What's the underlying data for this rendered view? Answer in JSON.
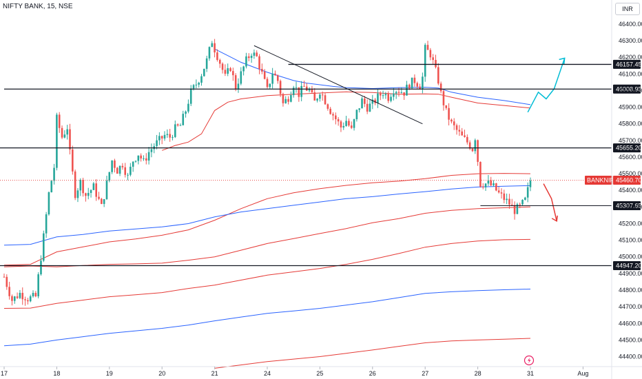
{
  "header": {
    "symbol": "NIFTY BANK, 15, NSE",
    "currency": "INR"
  },
  "colors": {
    "up": "#26a69a",
    "down": "#ef5350",
    "blue": "#2962ff",
    "red": "#e53935",
    "cyan": "#00bcd4"
  },
  "chart_data": {
    "type": "candlestick",
    "ylim": [
      44340,
      46470
    ],
    "y_ticks": [
      "46400.00",
      "46300.00",
      "46200.00",
      "46100.00",
      "46000.00",
      "45900.00",
      "45800.00",
      "45700.00",
      "45600.00",
      "45500.00",
      "45400.00",
      "45300.00",
      "45200.00",
      "45100.00",
      "45000.00",
      "44900.00",
      "44800.00",
      "44700.00",
      "44600.00",
      "44500.00",
      "44400.00"
    ],
    "x_ticks": [
      {
        "label": "17",
        "slot": 0
      },
      {
        "label": "18",
        "slot": 20
      },
      {
        "label": "19",
        "slot": 40
      },
      {
        "label": "20",
        "slot": 60
      },
      {
        "label": "21",
        "slot": 80
      },
      {
        "label": "24",
        "slot": 100
      },
      {
        "label": "25",
        "slot": 120
      },
      {
        "label": "26",
        "slot": 140
      },
      {
        "label": "27",
        "slot": 160
      },
      {
        "label": "28",
        "slot": 180
      },
      {
        "label": "31",
        "slot": 200
      },
      {
        "label": "Aug",
        "slot": 220
      }
    ],
    "levels": [
      {
        "value": 46157.45,
        "label": "46157.45",
        "from_slot": 108
      },
      {
        "value": 46008.95,
        "label": "46008.95",
        "from_slot": 0
      },
      {
        "value": 45655.2,
        "label": "45655.20",
        "from_slot": -2
      },
      {
        "value": 45307.65,
        "label": "45307.65",
        "from_slot": 181
      },
      {
        "value": 44947.2,
        "label": "44947.20",
        "from_slot": -2
      }
    ],
    "last_price": {
      "name": "BANKNIFTY",
      "value": 45460.7,
      "label": "45460.70"
    },
    "trendline": [
      {
        "slot": 95,
        "value": 46270
      },
      {
        "slot": 159,
        "value": 45800
      }
    ],
    "projection_up": [
      {
        "slot": 199,
        "value": 45870
      },
      {
        "slot": 203,
        "value": 45990
      },
      {
        "slot": 206,
        "value": 45950
      },
      {
        "slot": 209,
        "value": 46010
      },
      {
        "slot": 213,
        "value": 46195
      }
    ],
    "projection_down": [
      {
        "slot": 205,
        "value": 45440
      },
      {
        "slot": 208,
        "value": 45350
      },
      {
        "slot": 210,
        "value": 45215
      }
    ],
    "vwap_blue": [
      [
        0,
        45070
      ],
      [
        10,
        45075
      ],
      [
        20,
        45120
      ],
      [
        30,
        45135
      ],
      [
        40,
        45155
      ],
      [
        50,
        45168
      ],
      [
        60,
        45180
      ],
      [
        70,
        45200
      ],
      [
        80,
        45240
      ],
      [
        90,
        45270
      ],
      [
        100,
        45290
      ],
      [
        110,
        45310
      ],
      [
        120,
        45330
      ],
      [
        130,
        45350
      ],
      [
        140,
        45362
      ],
      [
        150,
        45378
      ],
      [
        160,
        45392
      ],
      [
        170,
        45408
      ],
      [
        180,
        45420
      ],
      [
        190,
        45425
      ],
      [
        200,
        45428
      ]
    ],
    "band_red_1": [
      [
        0,
        44950
      ],
      [
        10,
        44955
      ],
      [
        20,
        45030
      ],
      [
        30,
        45060
      ],
      [
        40,
        45090
      ],
      [
        50,
        45108
      ],
      [
        60,
        45130
      ],
      [
        70,
        45162
      ],
      [
        80,
        45220
      ],
      [
        90,
        45290
      ],
      [
        100,
        45350
      ],
      [
        110,
        45385
      ],
      [
        120,
        45410
      ],
      [
        130,
        45430
      ],
      [
        140,
        45445
      ],
      [
        150,
        45455
      ],
      [
        160,
        45470
      ],
      [
        170,
        45490
      ],
      [
        180,
        45500
      ],
      [
        190,
        45502
      ],
      [
        200,
        45500
      ]
    ],
    "band_red_2": [
      [
        0,
        44940
      ],
      [
        10,
        44945
      ],
      [
        20,
        44940
      ],
      [
        30,
        44948
      ],
      [
        40,
        44955
      ],
      [
        50,
        44958
      ],
      [
        60,
        44962
      ],
      [
        70,
        44980
      ],
      [
        80,
        45000
      ],
      [
        90,
        45040
      ],
      [
        100,
        45080
      ],
      [
        110,
        45110
      ],
      [
        120,
        45140
      ],
      [
        130,
        45170
      ],
      [
        140,
        45205
      ],
      [
        150,
        45230
      ],
      [
        160,
        45262
      ],
      [
        170,
        45280
      ],
      [
        180,
        45290
      ],
      [
        190,
        45295
      ],
      [
        200,
        45300
      ]
    ],
    "band_red_3": [
      [
        0,
        44690
      ],
      [
        10,
        44692
      ],
      [
        20,
        44720
      ],
      [
        30,
        44740
      ],
      [
        40,
        44760
      ],
      [
        50,
        44772
      ],
      [
        60,
        44785
      ],
      [
        70,
        44810
      ],
      [
        80,
        44830
      ],
      [
        90,
        44860
      ],
      [
        100,
        44890
      ],
      [
        110,
        44910
      ],
      [
        120,
        44930
      ],
      [
        130,
        44955
      ],
      [
        140,
        44985
      ],
      [
        150,
        45020
      ],
      [
        160,
        45058
      ],
      [
        170,
        45080
      ],
      [
        180,
        45095
      ],
      [
        190,
        45103
      ],
      [
        200,
        45105
      ]
    ],
    "band_blue_low": [
      [
        0,
        44465
      ],
      [
        10,
        44475
      ],
      [
        20,
        44500
      ],
      [
        30,
        44520
      ],
      [
        40,
        44540
      ],
      [
        50,
        44555
      ],
      [
        60,
        44570
      ],
      [
        70,
        44590
      ],
      [
        80,
        44615
      ],
      [
        90,
        44638
      ],
      [
        100,
        44660
      ],
      [
        110,
        44675
      ],
      [
        120,
        44690
      ],
      [
        130,
        44710
      ],
      [
        140,
        44730
      ],
      [
        150,
        44755
      ],
      [
        160,
        44780
      ],
      [
        170,
        44790
      ],
      [
        180,
        44797
      ],
      [
        190,
        44802
      ],
      [
        200,
        44806
      ]
    ],
    "band_red_low": [
      [
        80,
        44330
      ],
      [
        90,
        44350
      ],
      [
        100,
        44370
      ],
      [
        110,
        44385
      ],
      [
        120,
        44400
      ],
      [
        130,
        44420
      ],
      [
        140,
        44440
      ],
      [
        150,
        44462
      ],
      [
        160,
        44483
      ],
      [
        170,
        44494
      ],
      [
        180,
        44500
      ],
      [
        190,
        44505
      ],
      [
        200,
        44510
      ]
    ],
    "session_blue": [
      [
        80,
        46250
      ],
      [
        85,
        46210
      ],
      [
        90,
        46170
      ],
      [
        95,
        46140
      ],
      [
        100,
        46110
      ],
      [
        105,
        46085
      ],
      [
        110,
        46060
      ],
      [
        115,
        46045
      ],
      [
        120,
        46035
      ],
      [
        125,
        46025
      ],
      [
        130,
        46018
      ],
      [
        140,
        46012
      ],
      [
        150,
        46018
      ],
      [
        160,
        46020
      ],
      [
        165,
        46015
      ],
      [
        170,
        45990
      ],
      [
        180,
        45960
      ],
      [
        190,
        45940
      ],
      [
        200,
        45915
      ]
    ],
    "session_red": [
      [
        60,
        45640
      ],
      [
        65,
        45670
      ],
      [
        70,
        45690
      ],
      [
        75,
        45740
      ],
      [
        80,
        45880
      ],
      [
        85,
        45930
      ],
      [
        90,
        45950
      ],
      [
        100,
        45970
      ],
      [
        110,
        45978
      ],
      [
        120,
        45985
      ],
      [
        130,
        45992
      ],
      [
        140,
        45988
      ],
      [
        150,
        45978
      ],
      [
        160,
        45980
      ],
      [
        165,
        45978
      ],
      [
        170,
        45960
      ],
      [
        180,
        45925
      ],
      [
        190,
        45910
      ],
      [
        200,
        45895
      ]
    ],
    "ohlc_anchors": [
      [
        0,
        44880
      ],
      [
        3,
        44740
      ],
      [
        6,
        44780
      ],
      [
        9,
        44750
      ],
      [
        12,
        44760
      ],
      [
        13,
        44880
      ],
      [
        15,
        45120
      ],
      [
        17,
        45380
      ],
      [
        19,
        45540
      ],
      [
        20,
        45830
      ],
      [
        22,
        45720
      ],
      [
        24,
        45780
      ],
      [
        25,
        45620
      ],
      [
        27,
        45380
      ],
      [
        29,
        45450
      ],
      [
        31,
        45370
      ],
      [
        34,
        45420
      ],
      [
        37,
        45300
      ],
      [
        39,
        45440
      ],
      [
        41,
        45580
      ],
      [
        43,
        45520
      ],
      [
        45,
        45560
      ],
      [
        47,
        45480
      ],
      [
        49,
        45580
      ],
      [
        51,
        45620
      ],
      [
        53,
        45570
      ],
      [
        55,
        45630
      ],
      [
        57,
        45670
      ],
      [
        59,
        45700
      ],
      [
        61,
        45730
      ],
      [
        63,
        45720
      ],
      [
        65,
        45770
      ],
      [
        67,
        45790
      ],
      [
        69,
        45880
      ],
      [
        71,
        45990
      ],
      [
        73,
        46040
      ],
      [
        75,
        46100
      ],
      [
        77,
        46180
      ],
      [
        79,
        46300
      ],
      [
        80,
        46250
      ],
      [
        82,
        46170
      ],
      [
        84,
        46080
      ],
      [
        86,
        46140
      ],
      [
        88,
        46020
      ],
      [
        90,
        46100
      ],
      [
        92,
        46180
      ],
      [
        94,
        46230
      ],
      [
        96,
        46200
      ],
      [
        98,
        46100
      ],
      [
        100,
        46000
      ],
      [
        102,
        46110
      ],
      [
        104,
        46060
      ],
      [
        106,
        45920
      ],
      [
        108,
        45960
      ],
      [
        110,
        46040
      ],
      [
        112,
        45980
      ],
      [
        114,
        46020
      ],
      [
        116,
        46000
      ],
      [
        118,
        45930
      ],
      [
        120,
        46000
      ],
      [
        122,
        45940
      ],
      [
        124,
        45880
      ],
      [
        126,
        45830
      ],
      [
        128,
        45780
      ],
      [
        130,
        45820
      ],
      [
        132,
        45760
      ],
      [
        134,
        45870
      ],
      [
        136,
        45940
      ],
      [
        138,
        45900
      ],
      [
        140,
        45920
      ],
      [
        142,
        45960
      ],
      [
        144,
        45990
      ],
      [
        146,
        45960
      ],
      [
        148,
        46010
      ],
      [
        150,
        46000
      ],
      [
        152,
        45990
      ],
      [
        154,
        46040
      ],
      [
        156,
        46060
      ],
      [
        158,
        46030
      ],
      [
        159,
        46080
      ],
      [
        160,
        46250
      ],
      [
        162,
        46220
      ],
      [
        163,
        46170
      ],
      [
        165,
        46060
      ],
      [
        166,
        45980
      ],
      [
        168,
        45870
      ],
      [
        170,
        45800
      ],
      [
        172,
        45760
      ],
      [
        174,
        45720
      ],
      [
        176,
        45690
      ],
      [
        178,
        45650
      ],
      [
        179,
        45720
      ],
      [
        181,
        45440
      ],
      [
        184,
        45440
      ],
      [
        186,
        45420
      ],
      [
        188,
        45380
      ],
      [
        190,
        45350
      ],
      [
        192,
        45320
      ],
      [
        194,
        45280
      ],
      [
        196,
        45300
      ],
      [
        198,
        45340
      ],
      [
        200,
        45460
      ]
    ]
  }
}
